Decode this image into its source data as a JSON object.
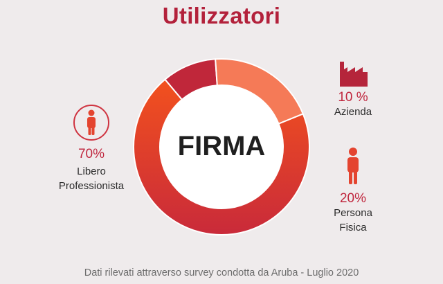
{
  "header": {
    "title": "Utilizzatori"
  },
  "footer": {
    "source": "Dati rilevati attraverso survey condotta da Aruba - Luglio 2020"
  },
  "colors": {
    "title": "#b3213b",
    "percent": "#c0273e",
    "slice_libero_gradient": [
      "#f2511e",
      "#c92a3a"
    ],
    "slice_azienda": "#c0273a",
    "slice_persona": "#f57a57"
  },
  "chart_data": {
    "type": "pie",
    "center_label": "FIRMA",
    "slices": [
      {
        "percent_label": "10 %",
        "name": "Azienda",
        "value": 10,
        "icon": "factory-icon"
      },
      {
        "percent_label": "20%",
        "name_lines": [
          "Persona",
          "Fisica"
        ],
        "value": 20,
        "icon": "person-icon"
      },
      {
        "percent_label": "70%",
        "name_lines": [
          "Libero",
          "Professionista"
        ],
        "value": 70,
        "icon": "person-circle-icon"
      }
    ]
  }
}
